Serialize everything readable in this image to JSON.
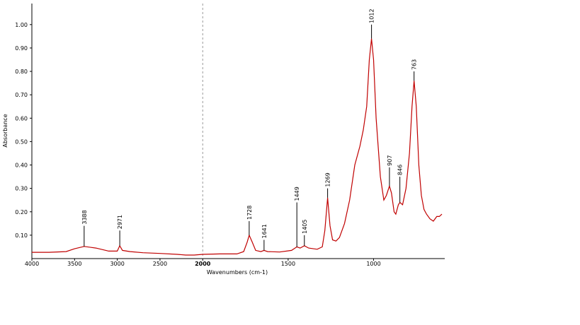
{
  "chart_data": {
    "type": "line",
    "xlabel": "Wavenumbers (cm-1)",
    "ylabel": "Absorbance",
    "xlim": [
      4000,
      600
    ],
    "x_break": 2000,
    "x_break_scale": 2,
    "xticks": [
      4000,
      3500,
      3000,
      2500,
      2000,
      1500,
      1000
    ],
    "ylim": [
      0,
      1.09
    ],
    "yticks": [
      {
        "value": 0.1,
        "label": "0.10"
      },
      {
        "value": 0.2,
        "label": "0.20"
      },
      {
        "value": 0.3,
        "label": "0.30"
      },
      {
        "value": 0.4,
        "label": "0.40"
      },
      {
        "value": 0.5,
        "label": "0.50"
      },
      {
        "value": 0.6,
        "label": "0.60"
      },
      {
        "value": 0.7,
        "label": "0.70"
      },
      {
        "value": 0.8,
        "label": "0.80"
      },
      {
        "value": 0.9,
        "label": "0.90"
      },
      {
        "value": 1.0,
        "label": "1.00"
      }
    ],
    "series": [
      {
        "color": "#c00000",
        "x": [
          4000,
          3800,
          3600,
          3500,
          3388,
          3250,
          3100,
          3000,
          2971,
          2940,
          2850,
          2700,
          2500,
          2300,
          2200,
          2100,
          2000,
          1900,
          1800,
          1760,
          1740,
          1728,
          1710,
          1690,
          1660,
          1641,
          1620,
          1550,
          1480,
          1449,
          1430,
          1405,
          1380,
          1330,
          1300,
          1285,
          1269,
          1255,
          1240,
          1220,
          1200,
          1170,
          1140,
          1110,
          1080,
          1060,
          1040,
          1025,
          1012,
          1000,
          985,
          960,
          940,
          925,
          907,
          895,
          880,
          870,
          855,
          846,
          830,
          810,
          790,
          775,
          763,
          750,
          735,
          720,
          705,
          690,
          670,
          650,
          630,
          615,
          600
        ],
        "values": [
          0.027,
          0.027,
          0.03,
          0.042,
          0.052,
          0.045,
          0.032,
          0.032,
          0.055,
          0.035,
          0.03,
          0.025,
          0.022,
          0.018,
          0.015,
          0.015,
          0.018,
          0.02,
          0.02,
          0.03,
          0.07,
          0.1,
          0.07,
          0.035,
          0.03,
          0.035,
          0.03,
          0.028,
          0.035,
          0.05,
          0.045,
          0.055,
          0.045,
          0.04,
          0.05,
          0.12,
          0.26,
          0.14,
          0.08,
          0.075,
          0.09,
          0.15,
          0.25,
          0.4,
          0.48,
          0.55,
          0.65,
          0.85,
          0.94,
          0.85,
          0.6,
          0.35,
          0.25,
          0.27,
          0.31,
          0.28,
          0.2,
          0.19,
          0.23,
          0.24,
          0.23,
          0.3,
          0.45,
          0.65,
          0.76,
          0.65,
          0.4,
          0.27,
          0.21,
          0.19,
          0.17,
          0.16,
          0.18,
          0.18,
          0.19
        ]
      }
    ],
    "peaks": [
      {
        "x": 3388,
        "top": 0.14
      },
      {
        "x": 2971,
        "top": 0.12
      },
      {
        "x": 1728,
        "top": 0.16
      },
      {
        "x": 1641,
        "top": 0.08
      },
      {
        "x": 1449,
        "top": 0.24
      },
      {
        "x": 1405,
        "top": 0.1
      },
      {
        "x": 1269,
        "top": 0.3
      },
      {
        "x": 1012,
        "top": 1.0
      },
      {
        "x": 907,
        "top": 0.39
      },
      {
        "x": 846,
        "top": 0.35
      },
      {
        "x": 763,
        "top": 0.8
      }
    ]
  }
}
